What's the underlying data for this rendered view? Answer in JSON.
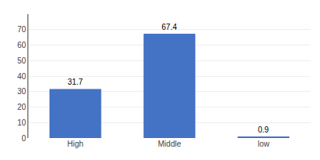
{
  "chart_data": {
    "type": "bar",
    "categories": [
      "High",
      "Middle",
      "low"
    ],
    "values": [
      31.7,
      67.4,
      0.9
    ],
    "color": "#4472C4",
    "ylim": [
      0,
      80
    ],
    "yticks": [
      0,
      10,
      20,
      30,
      40,
      50,
      60,
      70
    ],
    "grid": true,
    "data_labels": true
  }
}
